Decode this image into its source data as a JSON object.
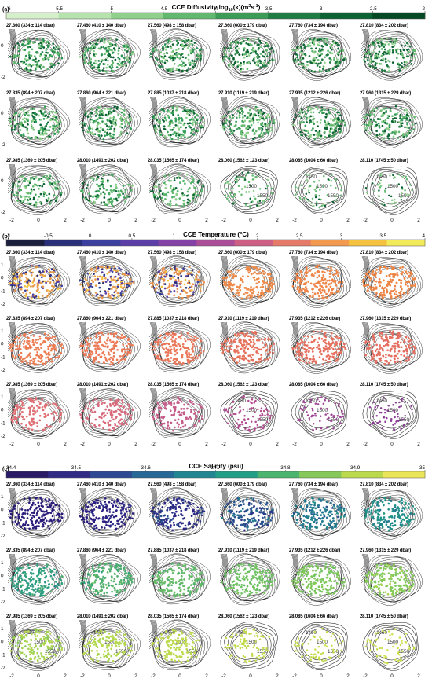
{
  "chart_data": [
    {
      "type": "scatter",
      "section_label": "(a)",
      "title": "CCE Diffusivity log10(κ)(m²s⁻¹)",
      "title_parts": [
        "CCE Diffusivity log",
        "10",
        "(κ)(m",
        "2",
        "s",
        "-1",
        ")"
      ],
      "colorbar": {
        "ticks": [
          "-6",
          "-5.5",
          "-5",
          "-4.5",
          "-4",
          "-3.5",
          "-3",
          "-2.5",
          "-2"
        ],
        "colors": [
          "#d5efcb",
          "#b6e2ad",
          "#8fd08b",
          "#62b86e",
          "#3b9b57",
          "#217c43",
          "#0d6333",
          "#064a25"
        ]
      },
      "panels": [
        "27.360 (334 ± 114 dbar)",
        "27.460 (410 ± 140 dbar)",
        "27.560 (498 ± 158 dbar)",
        "27.660 (600 ± 179 dbar)",
        "27.760 (734 ± 194 dbar)",
        "27.810 (834 ± 202 dbar)",
        "27.835 (894 ± 207 dbar)",
        "27.860 (964 ± 221 dbar)",
        "27.885 (1037 ± 218 dbar)",
        "27.910 (1119 ± 219 dbar)",
        "27.935 (1212 ± 226 dbar)",
        "27.960 (1315 ± 229 dbar)",
        "27.985 (1369 ± 205 dbar)",
        "28.010 (1491 ± 202 dbar)",
        "28.035 (1565 ± 174 dbar)",
        "28.060 (1562 ± 123 dbar)",
        "28.085 (1604 ± 66 dbar)",
        "28.110 (1745 ± 50 dbar)"
      ],
      "panel_point_colors": [
        "#2a9152",
        "#2a9152",
        "#2a9152",
        "#217c43",
        "#217c43",
        "#1e7a41",
        "#2e9a55",
        "#2e9a55",
        "#34a05a",
        "#3a9b57",
        "#3a9b57",
        "#3ea05c",
        "#44a860",
        "#4aac64",
        "#52b46a",
        "#60bd72",
        "#6ec47a",
        "#7acb82"
      ],
      "panel_density": [
        1,
        1,
        1,
        1,
        1,
        1,
        1,
        1,
        1,
        1,
        1,
        1,
        0.8,
        0.75,
        0.7,
        0.45,
        0.35,
        0.3
      ],
      "x_ticks": [
        "-2",
        "0",
        "2"
      ],
      "y_ticks": [
        "0",
        "-2"
      ]
    },
    {
      "type": "scatter",
      "section_label": "(b)",
      "title": "CCE Temperature (°C)",
      "title_parts": [
        "CCE Temperature (",
        "o",
        "C)"
      ],
      "colorbar": {
        "ticks": [
          "-1",
          "-0.5",
          "0",
          "0.5",
          "1",
          "1.5",
          "2",
          "2.5",
          "3",
          "3.5",
          "4"
        ],
        "colors": [
          "#1b1e3c",
          "#2a2f7a",
          "#3b3f9e",
          "#5b3fa6",
          "#8442a6",
          "#aa4e98",
          "#cc5f83",
          "#e67a68",
          "#f29a4f",
          "#f5c240",
          "#f2ea5a"
        ]
      },
      "panels": [
        "27.360 (334 ± 114 dbar)",
        "27.460 (410 ± 140 dbar)",
        "27.560 (498 ± 158 dbar)",
        "27.660 (600 ± 179 dbar)",
        "27.760 (734 ± 194 dbar)",
        "27.810 (834 ± 202 dbar)",
        "27.835 (894 ± 207 dbar)",
        "27.860 (964 ± 221 dbar)",
        "27.885 (1037 ± 218 dbar)",
        "27.910 (1119 ± 219 dbar)",
        "27.935 (1212 ± 226 dbar)",
        "27.960 (1315 ± 229 dbar)",
        "27.985 (1369 ± 205 dbar)",
        "28.010 (1491 ± 202 dbar)",
        "28.035 (1565 ± 174 dbar)",
        "28.060 (1562 ± 123 dbar)",
        "28.085 (1604 ± 66 dbar)",
        "28.110 (1745 ± 50 dbar)"
      ],
      "panel_point_colors": [
        "#e39a4a",
        "#e69a4e",
        "#e98f4e",
        "#ee8a4a",
        "#ef8446",
        "#ee8444",
        "#ec7c52",
        "#ec7a56",
        "#e97658",
        "#e7725c",
        "#e6705e",
        "#e46e60",
        "#df6f74",
        "#d86a7c",
        "#c55c8a",
        "#b24c90",
        "#9c4594",
        "#8a3f94"
      ],
      "panel_mixed": [
        true,
        true,
        true,
        false,
        false,
        false,
        false,
        false,
        false,
        false,
        false,
        false,
        false,
        false,
        false,
        false,
        false,
        false
      ],
      "panel_density": [
        1,
        1,
        1,
        1,
        1,
        1,
        1,
        1,
        1,
        1,
        1,
        1,
        0.8,
        0.75,
        0.7,
        0.5,
        0.4,
        0.35
      ],
      "x_ticks": [
        "-2",
        "0",
        "2"
      ],
      "y_ticks": [
        "1",
        "0",
        "-1",
        "-2"
      ]
    },
    {
      "type": "scatter",
      "section_label": "(c)",
      "title": "CCE Salinity (psu)",
      "colorbar": {
        "ticks": [
          "34.4",
          "34.5",
          "34.6",
          "34.7",
          "34.8",
          "34.9",
          "35"
        ],
        "colors": [
          "#2a1a66",
          "#312b86",
          "#2d4a93",
          "#276896",
          "#218592",
          "#239e86",
          "#4bb46f",
          "#86c95a",
          "#bbd94c",
          "#ebe55a"
        ]
      },
      "panels": [
        "27.360 (334 ± 114 dbar)",
        "27.460 (410 ± 140 dbar)",
        "27.560 (498 ± 158 dbar)",
        "27.660 (600 ± 179 dbar)",
        "27.760 (734 ± 194 dbar)",
        "27.810 (834 ± 202 dbar)",
        "27.835 (894 ± 207 dbar)",
        "27.860 (964 ± 221 dbar)",
        "27.885 (1037 ± 218 dbar)",
        "27.910 (1119 ± 219 dbar)",
        "27.935 (1212 ± 226 dbar)",
        "27.960 (1315 ± 229 dbar)",
        "27.985 (1369 ± 205 dbar)",
        "28.010 (1491 ± 202 dbar)",
        "28.035 (1565 ± 174 dbar)",
        "28.060 (1562 ± 123 dbar)",
        "28.085 (1604 ± 66 dbar)",
        "28.110 (1745 ± 50 dbar)"
      ],
      "panel_point_colors": [
        "#2a1a78",
        "#2b2080",
        "#2d3288",
        "#28558e",
        "#237a90",
        "#22908a",
        "#2f9f80",
        "#4eaf70",
        "#62ba68",
        "#6ec063",
        "#7cc65c",
        "#84c959",
        "#a6d350",
        "#b3d84d",
        "#bcd94c",
        "#c0da4c",
        "#c5dc4c",
        "#cde04e"
      ],
      "panel_density": [
        1,
        1,
        1,
        1,
        1,
        1,
        1,
        1,
        1,
        1,
        1,
        1,
        0.8,
        0.75,
        0.7,
        0.5,
        0.4,
        0.35
      ],
      "x_ticks": [
        "-2",
        "0",
        "2"
      ],
      "y_ticks": [
        "1",
        "0",
        "-1",
        "-2"
      ]
    }
  ]
}
